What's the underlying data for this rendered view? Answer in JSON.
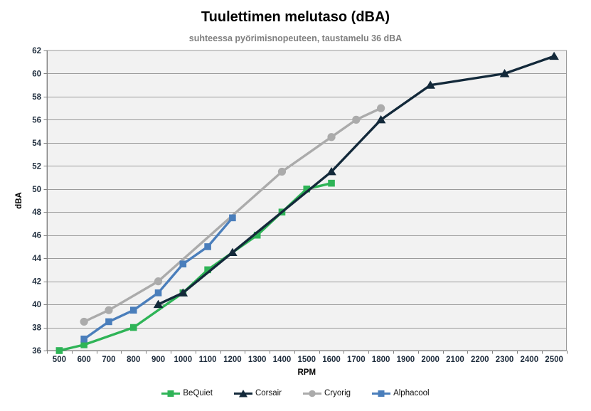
{
  "chart_data": {
    "type": "line",
    "title": "Tuulettimen melutaso (dBA)",
    "subtitle": "suhteessa pyörimisnopeuteen, taustamelu 36 dBA",
    "xlabel": "RPM",
    "ylabel": "dBA",
    "x_ticks": [
      500,
      600,
      700,
      800,
      900,
      1000,
      1100,
      1200,
      1300,
      1400,
      1500,
      1600,
      1700,
      1800,
      1900,
      2000,
      2100,
      2200,
      2300,
      2400,
      2500
    ],
    "ylim": [
      36,
      62
    ],
    "y_tick_step": 2,
    "grid": true,
    "legend_position": "bottom",
    "colors": {
      "plot_background": "#f2f2f2",
      "gridline": "#9b9b9b",
      "axis_line": "#7f7f7f",
      "tick_label": "#1f2d3d",
      "axis_title": "#000000"
    },
    "series": [
      {
        "name": "BeQuiet",
        "color": "#2fb457",
        "marker": "square",
        "points": [
          [
            500,
            36
          ],
          [
            600,
            36.5
          ],
          [
            800,
            38
          ],
          [
            1000,
            41
          ],
          [
            1100,
            43
          ],
          [
            1300,
            46
          ],
          [
            1400,
            48
          ],
          [
            1500,
            50
          ],
          [
            1600,
            50.5
          ]
        ]
      },
      {
        "name": "Corsair",
        "color": "#13293a",
        "marker": "triangle",
        "points": [
          [
            900,
            40
          ],
          [
            1000,
            41
          ],
          [
            1200,
            44.5
          ],
          [
            1600,
            51.5
          ],
          [
            1800,
            56
          ],
          [
            2000,
            59
          ],
          [
            2300,
            60
          ],
          [
            2500,
            61.5
          ]
        ]
      },
      {
        "name": "Cryorig",
        "color": "#ababab",
        "marker": "circle",
        "points": [
          [
            600,
            38.5
          ],
          [
            700,
            39.5
          ],
          [
            900,
            42
          ],
          [
            1400,
            51.5
          ],
          [
            1600,
            54.5
          ],
          [
            1700,
            56
          ],
          [
            1800,
            57
          ]
        ]
      },
      {
        "name": "Alphacool",
        "color": "#4a7ebb",
        "marker": "square",
        "points": [
          [
            600,
            37
          ],
          [
            700,
            38.5
          ],
          [
            800,
            39.5
          ],
          [
            900,
            41
          ],
          [
            1000,
            43.5
          ],
          [
            1100,
            45
          ],
          [
            1200,
            47.5
          ]
        ]
      }
    ]
  }
}
